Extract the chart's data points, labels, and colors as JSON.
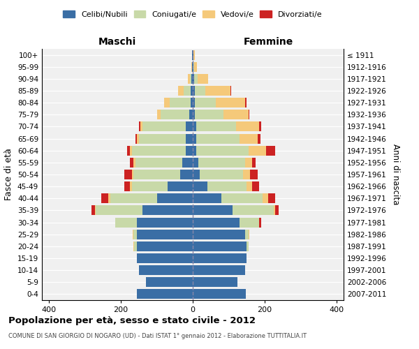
{
  "age_groups": [
    "100+",
    "95-99",
    "90-94",
    "85-89",
    "80-84",
    "75-79",
    "70-74",
    "65-69",
    "60-64",
    "55-59",
    "50-54",
    "45-49",
    "40-44",
    "35-39",
    "30-34",
    "25-29",
    "20-24",
    "15-19",
    "10-14",
    "5-9",
    "0-4"
  ],
  "birth_years": [
    "≤ 1911",
    "1912-1916",
    "1917-1921",
    "1922-1926",
    "1927-1931",
    "1932-1936",
    "1937-1941",
    "1942-1946",
    "1947-1951",
    "1952-1956",
    "1957-1961",
    "1962-1966",
    "1967-1971",
    "1972-1976",
    "1977-1981",
    "1982-1986",
    "1987-1991",
    "1992-1996",
    "1997-2001",
    "2002-2006",
    "2007-2011"
  ],
  "male": {
    "celibi": [
      2,
      2,
      3,
      5,
      5,
      10,
      20,
      20,
      20,
      30,
      35,
      70,
      100,
      140,
      155,
      155,
      155,
      155,
      150,
      130,
      155
    ],
    "coniugati": [
      0,
      0,
      5,
      20,
      60,
      80,
      120,
      130,
      150,
      130,
      130,
      100,
      130,
      130,
      60,
      10,
      8,
      0,
      0,
      0,
      0
    ],
    "vedovi": [
      0,
      2,
      5,
      15,
      15,
      10,
      5,
      5,
      5,
      5,
      5,
      5,
      5,
      3,
      0,
      2,
      2,
      0,
      0,
      0,
      0
    ],
    "divorziati": [
      0,
      0,
      0,
      0,
      0,
      0,
      5,
      5,
      8,
      10,
      20,
      15,
      20,
      8,
      0,
      0,
      0,
      0,
      0,
      0,
      0
    ]
  },
  "female": {
    "nubili": [
      2,
      2,
      3,
      5,
      5,
      5,
      10,
      10,
      10,
      15,
      20,
      40,
      80,
      110,
      130,
      145,
      150,
      150,
      145,
      125,
      148
    ],
    "coniugate": [
      0,
      2,
      10,
      30,
      60,
      80,
      110,
      120,
      145,
      130,
      120,
      110,
      115,
      115,
      55,
      10,
      5,
      0,
      0,
      0,
      0
    ],
    "vedove": [
      3,
      8,
      30,
      70,
      80,
      70,
      65,
      50,
      50,
      20,
      20,
      15,
      15,
      5,
      0,
      2,
      0,
      0,
      0,
      0,
      0
    ],
    "divorziate": [
      0,
      0,
      0,
      2,
      5,
      2,
      5,
      8,
      25,
      10,
      20,
      20,
      20,
      10,
      5,
      0,
      0,
      0,
      0,
      0,
      0
    ]
  },
  "colors": {
    "celibi": "#3a6ea5",
    "coniugati": "#c8d9a8",
    "vedovi": "#f5c97a",
    "divorziati": "#cc2222"
  },
  "xlim": 420,
  "title": "Popolazione per età, sesso e stato civile - 2012",
  "subtitle": "COMUNE DI SAN GIORGIO DI NOGARO (UD) - Dati ISTAT 1° gennaio 2012 - Elaborazione TUTTITALIA.IT",
  "ylabel_left": "Fasce di età",
  "ylabel_right": "Anni di nascita",
  "xlabel_maschi": "Maschi",
  "xlabel_femmine": "Femmine",
  "legend_labels": [
    "Celibi/Nubili",
    "Coniugati/e",
    "Vedovi/e",
    "Divorziati/e"
  ],
  "background_color": "#ffffff",
  "bar_bg_color": "#f0f0f0"
}
